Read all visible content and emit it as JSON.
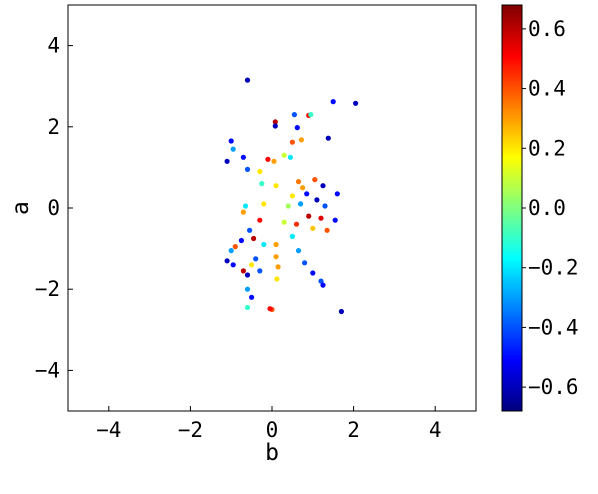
{
  "chart_data": {
    "type": "scatter",
    "xlabel": "b",
    "ylabel": "a",
    "xlim": [
      -5,
      5
    ],
    "ylim": [
      -5,
      5
    ],
    "xticks": [
      -4,
      -2,
      0,
      2,
      4
    ],
    "yticks": [
      -4,
      -2,
      0,
      2,
      4
    ],
    "xtick_labels": [
      "−4",
      "−2",
      "0",
      "2",
      "4"
    ],
    "ytick_labels": [
      "−4",
      "−2",
      "0",
      "2",
      "4"
    ],
    "grid": false,
    "colormap": "jet",
    "colorbar": {
      "range": [
        -0.68,
        0.68
      ],
      "ticks": [
        0.6,
        0.4,
        0.2,
        0.0,
        -0.2,
        -0.4,
        -0.6
      ],
      "tick_labels": [
        "0.6",
        "0.4",
        "0.2",
        "0.0",
        "−0.2",
        "−0.4",
        "−0.6"
      ]
    },
    "points": [
      {
        "x": -0.6,
        "y": 3.15,
        "c": -0.6
      },
      {
        "x": 1.5,
        "y": 2.62,
        "c": -0.5
      },
      {
        "x": 2.05,
        "y": 2.58,
        "c": -0.6
      },
      {
        "x": 0.55,
        "y": 2.3,
        "c": -0.4
      },
      {
        "x": 0.9,
        "y": 2.28,
        "c": 0.5
      },
      {
        "x": 0.95,
        "y": 2.3,
        "c": -0.1
      },
      {
        "x": 0.08,
        "y": 2.12,
        "c": 0.6
      },
      {
        "x": 0.08,
        "y": 2.02,
        "c": -0.6
      },
      {
        "x": 0.62,
        "y": 1.98,
        "c": -0.5
      },
      {
        "x": 1.38,
        "y": 1.72,
        "c": -0.6
      },
      {
        "x": 0.72,
        "y": 1.68,
        "c": 0.3
      },
      {
        "x": -1.0,
        "y": 1.65,
        "c": -0.5
      },
      {
        "x": 0.5,
        "y": 1.62,
        "c": 0.4
      },
      {
        "x": -0.95,
        "y": 1.45,
        "c": -0.3
      },
      {
        "x": -1.1,
        "y": 1.15,
        "c": -0.6
      },
      {
        "x": -0.7,
        "y": 1.25,
        "c": -0.5
      },
      {
        "x": -0.6,
        "y": 0.95,
        "c": -0.4
      },
      {
        "x": -0.1,
        "y": 1.2,
        "c": 0.5
      },
      {
        "x": 0.05,
        "y": 1.15,
        "c": 0.3
      },
      {
        "x": -0.3,
        "y": 0.9,
        "c": 0.2
      },
      {
        "x": 0.3,
        "y": 1.3,
        "c": 0.1
      },
      {
        "x": 0.45,
        "y": 1.25,
        "c": -0.2
      },
      {
        "x": -0.25,
        "y": 0.6,
        "c": -0.1
      },
      {
        "x": 0.1,
        "y": 0.55,
        "c": 0.2
      },
      {
        "x": 1.05,
        "y": 0.7,
        "c": 0.4
      },
      {
        "x": 1.25,
        "y": 0.55,
        "c": -0.6
      },
      {
        "x": 1.6,
        "y": 0.35,
        "c": -0.5
      },
      {
        "x": -0.65,
        "y": 0.05,
        "c": -0.2
      },
      {
        "x": -0.7,
        "y": -0.1,
        "c": 0.3
      },
      {
        "x": -0.2,
        "y": 0.1,
        "c": 0.2
      },
      {
        "x": -0.3,
        "y": -0.3,
        "c": 0.5
      },
      {
        "x": -0.55,
        "y": -0.55,
        "c": -0.4
      },
      {
        "x": -0.75,
        "y": -0.8,
        "c": -0.5
      },
      {
        "x": -0.9,
        "y": -0.95,
        "c": 0.4
      },
      {
        "x": -1.0,
        "y": -1.05,
        "c": -0.3
      },
      {
        "x": -0.45,
        "y": -0.75,
        "c": 0.6
      },
      {
        "x": -0.2,
        "y": -0.9,
        "c": -0.2
      },
      {
        "x": 0.1,
        "y": -0.9,
        "c": 0.3
      },
      {
        "x": 0.1,
        "y": -1.2,
        "c": 0.3
      },
      {
        "x": 0.15,
        "y": -1.45,
        "c": 0.3
      },
      {
        "x": 0.12,
        "y": -1.75,
        "c": 0.2
      },
      {
        "x": -0.4,
        "y": -1.25,
        "c": -0.4
      },
      {
        "x": -0.5,
        "y": -1.4,
        "c": 0.2
      },
      {
        "x": -0.7,
        "y": -1.55,
        "c": 0.6
      },
      {
        "x": -0.6,
        "y": -1.65,
        "c": -0.6
      },
      {
        "x": -0.3,
        "y": -1.55,
        "c": -0.4
      },
      {
        "x": -0.6,
        "y": -2.0,
        "c": -0.3
      },
      {
        "x": -0.5,
        "y": -2.2,
        "c": -0.5
      },
      {
        "x": -0.6,
        "y": -2.45,
        "c": -0.1
      },
      {
        "x": -1.1,
        "y": -1.3,
        "c": -0.6
      },
      {
        "x": -0.95,
        "y": -1.4,
        "c": -0.5
      },
      {
        "x": 0.0,
        "y": -2.5,
        "c": 0.4
      },
      {
        "x": -0.05,
        "y": -2.48,
        "c": 0.5
      },
      {
        "x": 0.5,
        "y": -0.7,
        "c": -0.2
      },
      {
        "x": 0.65,
        "y": -1.05,
        "c": -0.3
      },
      {
        "x": 0.8,
        "y": -1.35,
        "c": -0.4
      },
      {
        "x": 1.0,
        "y": -1.6,
        "c": -0.5
      },
      {
        "x": 1.2,
        "y": -1.8,
        "c": -0.4
      },
      {
        "x": 1.25,
        "y": -1.9,
        "c": -0.5
      },
      {
        "x": 1.7,
        "y": -2.55,
        "c": -0.6
      },
      {
        "x": 1.55,
        "y": -0.3,
        "c": -0.5
      },
      {
        "x": 1.35,
        "y": -0.55,
        "c": 0.4
      },
      {
        "x": 0.3,
        "y": -0.35,
        "c": 0.1
      },
      {
        "x": 0.5,
        "y": 0.3,
        "c": 0.2
      },
      {
        "x": 0.7,
        "y": 0.1,
        "c": -0.3
      },
      {
        "x": 0.9,
        "y": -0.2,
        "c": 0.6
      },
      {
        "x": 1.1,
        "y": 0.2,
        "c": -0.6
      },
      {
        "x": 0.75,
        "y": 0.5,
        "c": 0.3
      },
      {
        "x": 0.6,
        "y": -0.4,
        "c": 0.45
      },
      {
        "x": 1.2,
        "y": -0.25,
        "c": 0.55
      },
      {
        "x": 0.85,
        "y": 0.35,
        "c": -0.5
      },
      {
        "x": 1.0,
        "y": -0.5,
        "c": 0.25
      },
      {
        "x": 0.4,
        "y": 0.05,
        "c": 0.05
      },
      {
        "x": 0.65,
        "y": 0.65,
        "c": 0.35
      },
      {
        "x": 1.3,
        "y": 0.05,
        "c": -0.4
      }
    ]
  }
}
